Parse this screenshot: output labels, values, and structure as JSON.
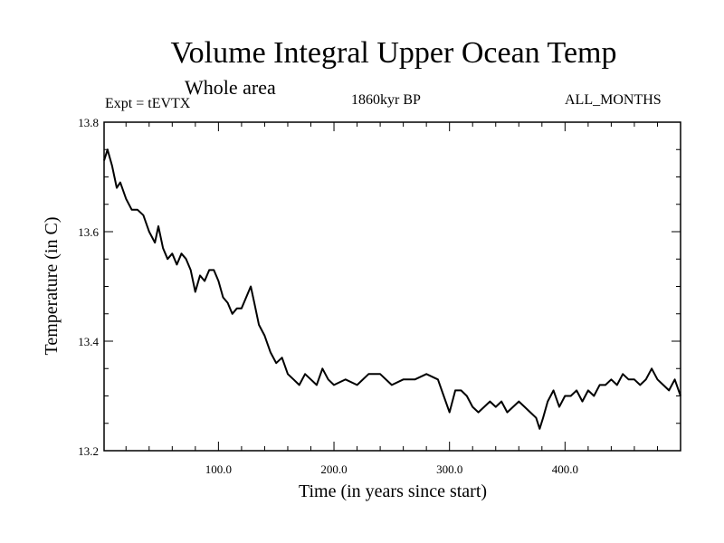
{
  "chart_data": {
    "type": "line",
    "title": "Volume Integral Upper Ocean Temp",
    "subtitle": "Whole area",
    "experiment": "Expt = tEVTX",
    "period": "1860kyr BP",
    "months": "ALL_MONTHS",
    "xlabel": "Time (in years since start)",
    "ylabel": "Temperature (in C)",
    "xlim": [
      1,
      500
    ],
    "ylim": [
      13.2,
      13.8
    ],
    "xticks": [
      100,
      200,
      300,
      400
    ],
    "xtick_labels": [
      "100.0",
      "200.0",
      "300.0",
      "400.0"
    ],
    "yticks": [
      13.2,
      13.4,
      13.6,
      13.8
    ],
    "ytick_labels": [
      "13.2",
      "13.4",
      "13.6",
      "13.8"
    ],
    "series": [
      {
        "name": "Volume integral upper ocean temperature",
        "x": [
          1,
          4,
          8,
          12,
          15,
          20,
          25,
          30,
          35,
          40,
          45,
          48,
          52,
          56,
          60,
          64,
          68,
          72,
          76,
          80,
          84,
          88,
          92,
          96,
          100,
          104,
          108,
          112,
          116,
          120,
          124,
          128,
          131,
          135,
          140,
          145,
          150,
          155,
          160,
          165,
          170,
          175,
          180,
          185,
          190,
          195,
          200,
          210,
          220,
          230,
          240,
          250,
          260,
          270,
          280,
          290,
          295,
          300,
          305,
          310,
          315,
          320,
          325,
          330,
          335,
          340,
          345,
          350,
          355,
          360,
          365,
          370,
          375,
          378,
          381,
          385,
          390,
          395,
          400,
          405,
          410,
          415,
          420,
          425,
          430,
          435,
          440,
          445,
          450,
          455,
          460,
          465,
          470,
          475,
          480,
          485,
          490,
          495,
          500
        ],
        "values": [
          13.73,
          13.75,
          13.72,
          13.68,
          13.69,
          13.66,
          13.64,
          13.64,
          13.63,
          13.6,
          13.58,
          13.61,
          13.57,
          13.55,
          13.56,
          13.54,
          13.56,
          13.55,
          13.53,
          13.49,
          13.52,
          13.51,
          13.53,
          13.53,
          13.51,
          13.48,
          13.47,
          13.45,
          13.46,
          13.46,
          13.48,
          13.5,
          13.47,
          13.43,
          13.41,
          13.38,
          13.36,
          13.37,
          13.34,
          13.33,
          13.32,
          13.34,
          13.33,
          13.32,
          13.35,
          13.33,
          13.32,
          13.33,
          13.32,
          13.34,
          13.34,
          13.32,
          13.33,
          13.33,
          13.34,
          13.33,
          13.3,
          13.27,
          13.31,
          13.31,
          13.3,
          13.28,
          13.27,
          13.28,
          13.29,
          13.28,
          13.29,
          13.27,
          13.28,
          13.29,
          13.28,
          13.27,
          13.26,
          13.24,
          13.26,
          13.29,
          13.31,
          13.28,
          13.3,
          13.3,
          13.31,
          13.29,
          13.31,
          13.3,
          13.32,
          13.32,
          13.33,
          13.32,
          13.34,
          13.33,
          13.33,
          13.32,
          13.33,
          13.35,
          13.33,
          13.32,
          13.31,
          13.33,
          13.3
        ]
      }
    ]
  }
}
